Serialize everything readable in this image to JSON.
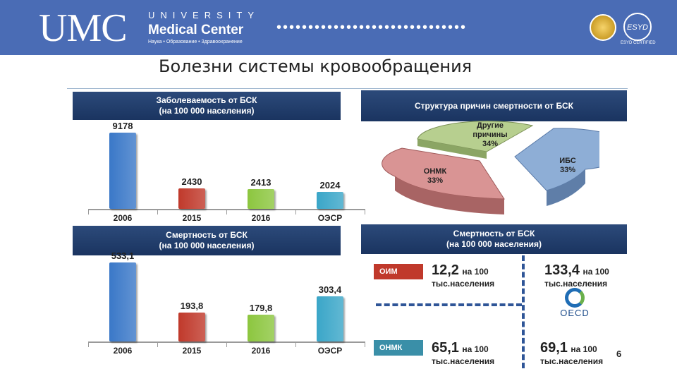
{
  "header": {
    "logo_text": "UMC",
    "university": "UNIVERSITY",
    "medical_center": "Medical Center",
    "tagline": "Наука • Образование • Здравоохранение",
    "esyd": "ESYD",
    "esyd_caption": "ESYD CERTIFIED"
  },
  "slide_title": "Болезни системы кровообращения",
  "page_number": "6",
  "chart_data": [
    {
      "type": "bar",
      "title": "Заболеваемость от БСК (на 100 000 населения)",
      "title_line1": "Заболеваемость от БСК",
      "title_line2": "(на 100 000 населения)",
      "categories": [
        "2006",
        "2015",
        "2016",
        "ОЭСР"
      ],
      "values": [
        9178,
        2430,
        2413,
        2024
      ],
      "value_labels": [
        "9178",
        "2430",
        "2413",
        "2024"
      ],
      "colors": [
        "#3a78c8",
        "#c0392b",
        "#8cc63f",
        "#3aa6c8"
      ],
      "ylim": [
        0,
        9178
      ]
    },
    {
      "type": "bar",
      "title": "Смертность от БСК (на 100 000 населения)",
      "title_line1": "Смертность от БСК",
      "title_line2": "(на 100 000 населения)",
      "categories": [
        "2006",
        "2015",
        "2016",
        "ОЭСР"
      ],
      "values": [
        533.1,
        193.8,
        179.8,
        303.4
      ],
      "value_labels": [
        "533,1",
        "193,8",
        "179,8",
        "303,4"
      ],
      "colors": [
        "#3a78c8",
        "#c0392b",
        "#8cc63f",
        "#3aa6c8"
      ],
      "ylim": [
        0,
        533.1
      ]
    },
    {
      "type": "pie",
      "title": "Структура причин смертности от БСК",
      "slices": [
        {
          "label_line1": "Другие",
          "label_line2": "причины",
          "pct_label": "34%",
          "value": 34,
          "color": "#b7cf8f"
        },
        {
          "label_line1": "ИБС",
          "label_line2": "",
          "pct_label": "33%",
          "value": 33,
          "color": "#8eaed6"
        },
        {
          "label_line1": "ОНМК",
          "label_line2": "",
          "pct_label": "33%",
          "value": 33,
          "color": "#d99494"
        }
      ]
    }
  ],
  "mortality_panel": {
    "title_line1": "Смертность от БСК",
    "title_line2": "(на 100 000 населения)",
    "rows": [
      {
        "badge": "ОИМ",
        "badge_color": "#c0392b",
        "left_big": "12,2",
        "left_small": "на 100",
        "left_line2": "тыс.населения",
        "right_big": "133,4",
        "right_small": "на 100",
        "right_line2": "тыс.населения"
      },
      {
        "badge": "ОНМК",
        "badge_color": "#3a8fa8",
        "left_big": "65,1",
        "left_small": "на 100",
        "left_line2": "тыс.населения",
        "right_big": "69,1",
        "right_small": "на 100",
        "right_line2": "тыс.населения"
      }
    ],
    "oecd_label": "OECD"
  }
}
